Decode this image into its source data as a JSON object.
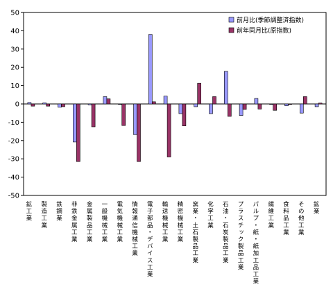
{
  "chart_data": {
    "type": "bar",
    "categories": [
      "鉱工業",
      "製造工業",
      "鉄鋼業",
      "非鉄金属工業",
      "金属製品工業",
      "一般機械工業",
      "電気機械工業",
      "情報通信機械工業",
      "電子部品・デバイス工業",
      "輸送機械工業",
      "精密機械工業",
      "窯業・土石製品工業",
      "化学工業",
      "石油・石炭製品工業",
      "プラスチック製品工業",
      "パルプ・紙・紙加工品工業",
      "繊維工業",
      "食料品工業",
      "その他工業",
      "鉱業"
    ],
    "series": [
      {
        "name": "前月比(季節調整済指数)",
        "color": "#9999ff",
        "values": [
          0.8,
          0.6,
          -1.8,
          -20.8,
          -0.5,
          4.0,
          -0.3,
          -16.8,
          38.0,
          4.3,
          -5.3,
          -1.5,
          -5.3,
          17.8,
          -6.3,
          3.0,
          -0.3,
          -1.0,
          -5.0,
          -1.5
        ]
      },
      {
        "name": "前年同月比(原指数)",
        "color": "#993366",
        "values": [
          -1.2,
          -1.2,
          -1.5,
          -31.5,
          -12.5,
          2.8,
          -11.8,
          -31.5,
          1.2,
          -29.0,
          -12.0,
          11.3,
          4.0,
          -6.8,
          -3.0,
          -2.8,
          -3.5,
          -0.3,
          4.0,
          0.5
        ]
      }
    ],
    "ylim": [
      -50,
      50
    ],
    "yticks": [
      "-50",
      "-40",
      "-30",
      "-20",
      "-10",
      "0",
      "10",
      "20",
      "30",
      "40",
      "50"
    ],
    "legend_position": "top-right",
    "grid": false
  }
}
